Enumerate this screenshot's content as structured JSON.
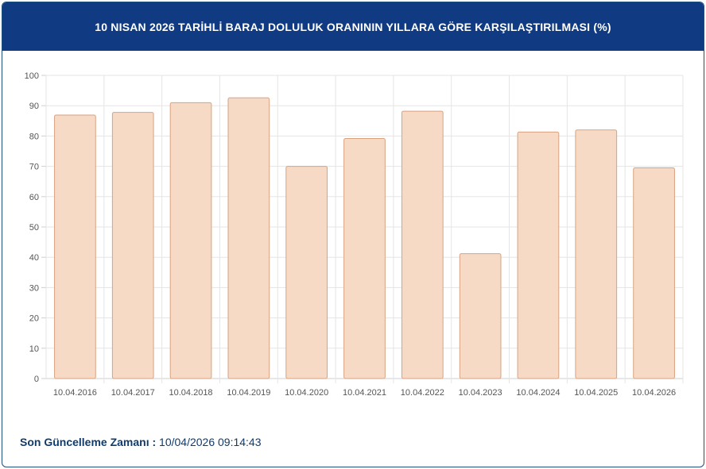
{
  "header": {
    "title": "10 NISAN 2026 TARİHLİ BARAJ DOLULUK ORANININ YILLARA GÖRE KARŞILAŞTIRILMASI (%)"
  },
  "footer": {
    "label": "Son Güncelleme Zamanı :",
    "value": "10/04/2026 09:14:43"
  },
  "colors": {
    "header_bg": "#103b82",
    "bar_fill": "#f6dac6",
    "bar_stroke": "#d9a27f",
    "grid": "#e5e5e5"
  },
  "chart_data": {
    "type": "bar",
    "title": "10 NISAN 2026 TARİHLİ BARAJ DOLULUK ORANININ YILLARA GÖRE KARŞILAŞTIRILMASI (%)",
    "categories": [
      "10.04.2016",
      "10.04.2017",
      "10.04.2018",
      "10.04.2019",
      "10.04.2020",
      "10.04.2021",
      "10.04.2022",
      "10.04.2023",
      "10.04.2024",
      "10.04.2025",
      "10.04.2026"
    ],
    "values": [
      86.9,
      87.8,
      91.0,
      92.6,
      70.0,
      79.2,
      88.2,
      41.2,
      81.3,
      82.0,
      69.5
    ],
    "yticks": [
      "0",
      "10",
      "20",
      "30",
      "40",
      "50",
      "60",
      "70",
      "80",
      "90",
      "100"
    ],
    "ylim": [
      0,
      100
    ],
    "xlabel": "",
    "ylabel": "",
    "grid": true,
    "legend": "none"
  }
}
